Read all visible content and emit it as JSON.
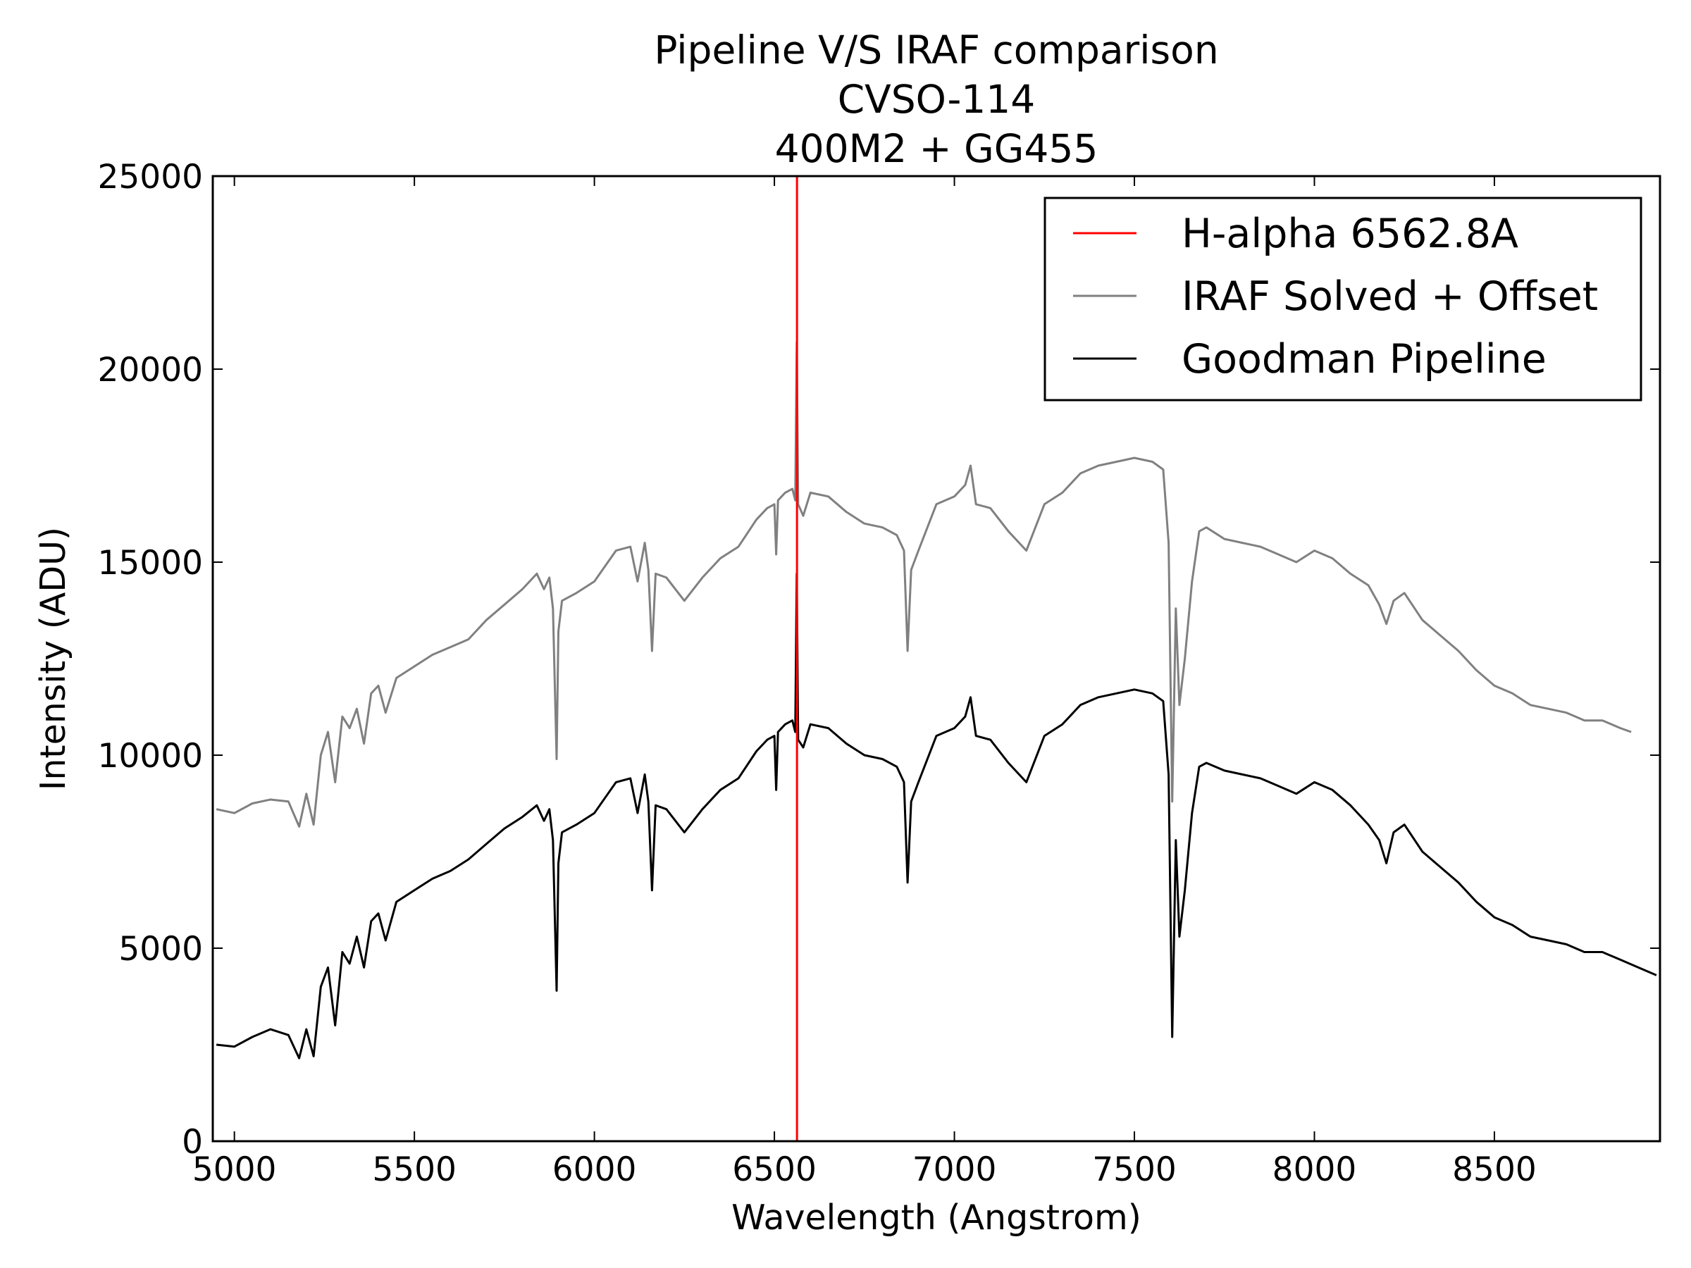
{
  "chart_data": {
    "type": "line",
    "title": [
      "Pipeline V/S IRAF comparison",
      "CVSO-114",
      "400M2 + GG455"
    ],
    "xlabel": "Wavelength (Angstrom)",
    "ylabel": "Intensity (ADU)",
    "xlim": [
      4940,
      8960
    ],
    "ylim": [
      0,
      25000
    ],
    "xticks": [
      5000,
      5500,
      6000,
      6500,
      7000,
      7500,
      8000,
      8500
    ],
    "yticks": [
      0,
      5000,
      10000,
      15000,
      20000,
      25000
    ],
    "grid": false,
    "legend_position": "top-right",
    "vline": {
      "name": "H-alpha 6562.8A",
      "x": 6562.8,
      "color": "#ff0000"
    },
    "series": [
      {
        "name": "IRAF Solved + Offset",
        "color": "#808080",
        "points": [
          [
            4950,
            8600
          ],
          [
            5000,
            8500
          ],
          [
            5050,
            8750
          ],
          [
            5100,
            8850
          ],
          [
            5150,
            8800
          ],
          [
            5180,
            8150
          ],
          [
            5200,
            9000
          ],
          [
            5220,
            8200
          ],
          [
            5240,
            10000
          ],
          [
            5260,
            10600
          ],
          [
            5280,
            9300
          ],
          [
            5300,
            11000
          ],
          [
            5320,
            10700
          ],
          [
            5340,
            11200
          ],
          [
            5360,
            10300
          ],
          [
            5380,
            11600
          ],
          [
            5400,
            11800
          ],
          [
            5420,
            11100
          ],
          [
            5450,
            12000
          ],
          [
            5500,
            12300
          ],
          [
            5550,
            12600
          ],
          [
            5600,
            12800
          ],
          [
            5650,
            13000
          ],
          [
            5700,
            13500
          ],
          [
            5750,
            13900
          ],
          [
            5800,
            14300
          ],
          [
            5840,
            14700
          ],
          [
            5860,
            14300
          ],
          [
            5875,
            14600
          ],
          [
            5885,
            13800
          ],
          [
            5895,
            9900
          ],
          [
            5900,
            13200
          ],
          [
            5910,
            14000
          ],
          [
            5950,
            14200
          ],
          [
            6000,
            14500
          ],
          [
            6030,
            14900
          ],
          [
            6060,
            15300
          ],
          [
            6100,
            15400
          ],
          [
            6120,
            14500
          ],
          [
            6140,
            15500
          ],
          [
            6150,
            14800
          ],
          [
            6160,
            12700
          ],
          [
            6170,
            14700
          ],
          [
            6200,
            14600
          ],
          [
            6250,
            14000
          ],
          [
            6300,
            14600
          ],
          [
            6350,
            15100
          ],
          [
            6400,
            15400
          ],
          [
            6450,
            16100
          ],
          [
            6480,
            16400
          ],
          [
            6500,
            16500
          ],
          [
            6505,
            15200
          ],
          [
            6510,
            16600
          ],
          [
            6530,
            16800
          ],
          [
            6550,
            16900
          ],
          [
            6558,
            16600
          ],
          [
            6562,
            20700
          ],
          [
            6566,
            16500
          ],
          [
            6580,
            16200
          ],
          [
            6600,
            16800
          ],
          [
            6650,
            16700
          ],
          [
            6700,
            16300
          ],
          [
            6750,
            16000
          ],
          [
            6800,
            15900
          ],
          [
            6840,
            15700
          ],
          [
            6860,
            15300
          ],
          [
            6870,
            12700
          ],
          [
            6880,
            14800
          ],
          [
            6900,
            15300
          ],
          [
            6950,
            16500
          ],
          [
            7000,
            16700
          ],
          [
            7030,
            17000
          ],
          [
            7045,
            17500
          ],
          [
            7060,
            16500
          ],
          [
            7100,
            16400
          ],
          [
            7150,
            15800
          ],
          [
            7200,
            15300
          ],
          [
            7250,
            16500
          ],
          [
            7300,
            16800
          ],
          [
            7350,
            17300
          ],
          [
            7400,
            17500
          ],
          [
            7450,
            17600
          ],
          [
            7500,
            17700
          ],
          [
            7550,
            17600
          ],
          [
            7580,
            17400
          ],
          [
            7595,
            15500
          ],
          [
            7605,
            8800
          ],
          [
            7615,
            13800
          ],
          [
            7625,
            11300
          ],
          [
            7640,
            12500
          ],
          [
            7660,
            14500
          ],
          [
            7680,
            15800
          ],
          [
            7700,
            15900
          ],
          [
            7750,
            15600
          ],
          [
            7800,
            15500
          ],
          [
            7850,
            15400
          ],
          [
            7900,
            15200
          ],
          [
            7950,
            15000
          ],
          [
            8000,
            15300
          ],
          [
            8050,
            15100
          ],
          [
            8100,
            14700
          ],
          [
            8150,
            14400
          ],
          [
            8180,
            13900
          ],
          [
            8200,
            13400
          ],
          [
            8220,
            14000
          ],
          [
            8250,
            14200
          ],
          [
            8300,
            13500
          ],
          [
            8350,
            13100
          ],
          [
            8400,
            12700
          ],
          [
            8450,
            12200
          ],
          [
            8500,
            11800
          ],
          [
            8550,
            11600
          ],
          [
            8600,
            11300
          ],
          [
            8650,
            11200
          ],
          [
            8700,
            11100
          ],
          [
            8750,
            10900
          ],
          [
            8800,
            10900
          ],
          [
            8850,
            10700
          ],
          [
            8880,
            10600
          ]
        ]
      },
      {
        "name": "Goodman Pipeline",
        "color": "#000000",
        "points": [
          [
            4950,
            2500
          ],
          [
            5000,
            2450
          ],
          [
            5050,
            2700
          ],
          [
            5100,
            2900
          ],
          [
            5150,
            2750
          ],
          [
            5180,
            2150
          ],
          [
            5200,
            2900
          ],
          [
            5220,
            2200
          ],
          [
            5240,
            4000
          ],
          [
            5260,
            4500
          ],
          [
            5280,
            3000
          ],
          [
            5300,
            4900
          ],
          [
            5320,
            4600
          ],
          [
            5340,
            5300
          ],
          [
            5360,
            4500
          ],
          [
            5380,
            5700
          ],
          [
            5400,
            5900
          ],
          [
            5420,
            5200
          ],
          [
            5450,
            6200
          ],
          [
            5500,
            6500
          ],
          [
            5550,
            6800
          ],
          [
            5600,
            7000
          ],
          [
            5650,
            7300
          ],
          [
            5700,
            7700
          ],
          [
            5750,
            8100
          ],
          [
            5800,
            8400
          ],
          [
            5840,
            8700
          ],
          [
            5860,
            8300
          ],
          [
            5875,
            8600
          ],
          [
            5885,
            7800
          ],
          [
            5895,
            3900
          ],
          [
            5900,
            7200
          ],
          [
            5910,
            8000
          ],
          [
            5950,
            8200
          ],
          [
            6000,
            8500
          ],
          [
            6030,
            8900
          ],
          [
            6060,
            9300
          ],
          [
            6100,
            9400
          ],
          [
            6120,
            8500
          ],
          [
            6140,
            9500
          ],
          [
            6150,
            8800
          ],
          [
            6160,
            6500
          ],
          [
            6170,
            8700
          ],
          [
            6200,
            8600
          ],
          [
            6250,
            8000
          ],
          [
            6300,
            8600
          ],
          [
            6350,
            9100
          ],
          [
            6400,
            9400
          ],
          [
            6450,
            10100
          ],
          [
            6480,
            10400
          ],
          [
            6500,
            10500
          ],
          [
            6505,
            9100
          ],
          [
            6510,
            10600
          ],
          [
            6530,
            10800
          ],
          [
            6550,
            10900
          ],
          [
            6558,
            10600
          ],
          [
            6562,
            14700
          ],
          [
            6566,
            10400
          ],
          [
            6580,
            10200
          ],
          [
            6600,
            10800
          ],
          [
            6650,
            10700
          ],
          [
            6700,
            10300
          ],
          [
            6750,
            10000
          ],
          [
            6800,
            9900
          ],
          [
            6840,
            9700
          ],
          [
            6860,
            9300
          ],
          [
            6870,
            6700
          ],
          [
            6880,
            8800
          ],
          [
            6900,
            9300
          ],
          [
            6950,
            10500
          ],
          [
            7000,
            10700
          ],
          [
            7030,
            11000
          ],
          [
            7045,
            11500
          ],
          [
            7060,
            10500
          ],
          [
            7100,
            10400
          ],
          [
            7150,
            9800
          ],
          [
            7200,
            9300
          ],
          [
            7250,
            10500
          ],
          [
            7300,
            10800
          ],
          [
            7350,
            11300
          ],
          [
            7400,
            11500
          ],
          [
            7450,
            11600
          ],
          [
            7500,
            11700
          ],
          [
            7550,
            11600
          ],
          [
            7580,
            11400
          ],
          [
            7595,
            9500
          ],
          [
            7605,
            2700
          ],
          [
            7615,
            7800
          ],
          [
            7625,
            5300
          ],
          [
            7640,
            6500
          ],
          [
            7660,
            8500
          ],
          [
            7680,
            9700
          ],
          [
            7700,
            9800
          ],
          [
            7750,
            9600
          ],
          [
            7800,
            9500
          ],
          [
            7850,
            9400
          ],
          [
            7900,
            9200
          ],
          [
            7950,
            9000
          ],
          [
            8000,
            9300
          ],
          [
            8050,
            9100
          ],
          [
            8100,
            8700
          ],
          [
            8150,
            8200
          ],
          [
            8180,
            7800
          ],
          [
            8200,
            7200
          ],
          [
            8220,
            8000
          ],
          [
            8250,
            8200
          ],
          [
            8300,
            7500
          ],
          [
            8350,
            7100
          ],
          [
            8400,
            6700
          ],
          [
            8450,
            6200
          ],
          [
            8500,
            5800
          ],
          [
            8550,
            5600
          ],
          [
            8600,
            5300
          ],
          [
            8650,
            5200
          ],
          [
            8700,
            5100
          ],
          [
            8750,
            4900
          ],
          [
            8800,
            4900
          ],
          [
            8850,
            4700
          ],
          [
            8900,
            4500
          ],
          [
            8950,
            4300
          ]
        ]
      }
    ]
  }
}
